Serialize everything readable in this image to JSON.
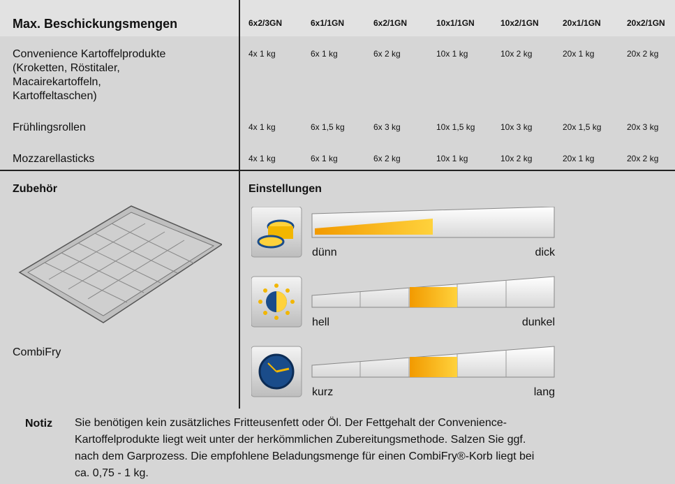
{
  "header": {
    "title": "Max. Beschickungsmengen",
    "columns": [
      "6x2/3GN",
      "6x1/1GN",
      "6x2/1GN",
      "10x1/1GN",
      "10x2/1GN",
      "20x1/1GN",
      "20x2/1GN"
    ]
  },
  "rows": [
    {
      "label": "Convenience Kartoffelprodukte\n(Kroketten, Röstitaler,\nMacairekartoffeln,\nKartoffeltaschen)",
      "values": [
        "4x 1 kg",
        "6x 1 kg",
        "6x 2 kg",
        "10x 1 kg",
        "10x 2 kg",
        "20x 1 kg",
        "20x 2 kg"
      ]
    },
    {
      "label": "Frühlingsrollen",
      "values": [
        "4x 1 kg",
        "6x 1,5 kg",
        "6x 3 kg",
        "10x 1,5 kg",
        "10x 3 kg",
        "20x 1,5 kg",
        "20x 3 kg"
      ]
    },
    {
      "label": "Mozzarellasticks",
      "values": [
        "4x 1 kg",
        "6x 1 kg",
        "6x 2 kg",
        "10x 1 kg",
        "10x 2 kg",
        "20x 1 kg",
        "20x 2 kg"
      ]
    }
  ],
  "accessories": {
    "title": "Zubehör",
    "item": "CombiFry"
  },
  "settings": {
    "title": "Einstellungen",
    "scales": [
      {
        "min": "dünn",
        "max": "dick"
      },
      {
        "min": "hell",
        "max": "dunkel"
      },
      {
        "min": "kurz",
        "max": "lang"
      }
    ]
  },
  "note": {
    "label": "Notiz",
    "text": "Sie benötigen kein zusätzliches Fritteusenfett oder Öl. Der Fettgehalt der Convenience-\nKartoffelprodukte liegt weit unter der herkömmlichen Zubereitungsmethode. Salzen Sie ggf.\nnach dem Garprozess. Die empfohlene Beladungsmenge für einen CombiFry®-Korb liegt bei\nca. 0,75 - 1 kg."
  }
}
